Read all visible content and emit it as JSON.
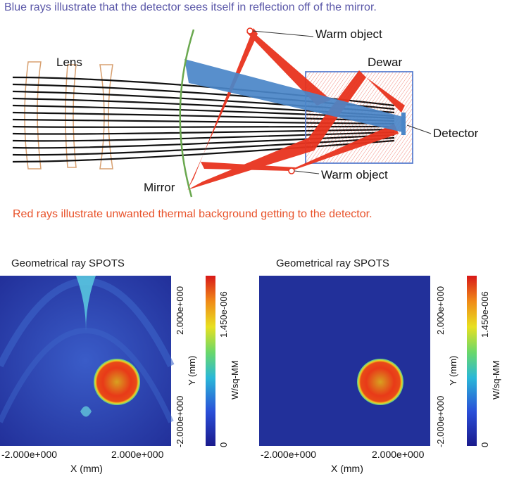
{
  "diagram": {
    "caption_top": "Blue rays illustrate that the detector sees itself in reflection off of the mirror.",
    "caption_bottom": "Red rays illustrate unwanted thermal background getting to the detector.",
    "labels": {
      "lens": "Lens",
      "dewar": "Dewar",
      "mirror": "Mirror",
      "detector": "Detector",
      "warm_object_top": "Warm object",
      "warm_object_bottom": "Warm object"
    },
    "colors": {
      "blue_rays": "#4a86c8",
      "red_rays": "#e8331e",
      "caption_blue": "#5a57a8",
      "caption_red": "#e8522a",
      "dewar_box": "#5b7fd0",
      "mirror": "#6aa84f"
    }
  },
  "plots": [
    {
      "title": "Geometrical ray SPOTS",
      "x_tick_min": "-2.000e+000",
      "x_tick_max": "2.000e+000",
      "x_label": "X (mm)",
      "y_tick_min": "-2.000e+000",
      "y_tick_max": "2.000e+000",
      "y_label": "Y (mm)",
      "colorbar_max": "1.450e-006",
      "colorbar_min": "0",
      "colorbar_label": "W/sq-MM",
      "background": "stray-light"
    },
    {
      "title": "Geometrical ray SPOTS",
      "x_tick_min": "-2.000e+000",
      "x_tick_max": "2.000e+000",
      "x_label": "X (mm)",
      "y_tick_min": "-2.000e+000",
      "y_tick_max": "2.000e+000",
      "y_label": "Y (mm)",
      "colorbar_max": "1.450e-006",
      "colorbar_min": "0",
      "colorbar_label": "W/sq-MM",
      "background": "clean"
    }
  ]
}
